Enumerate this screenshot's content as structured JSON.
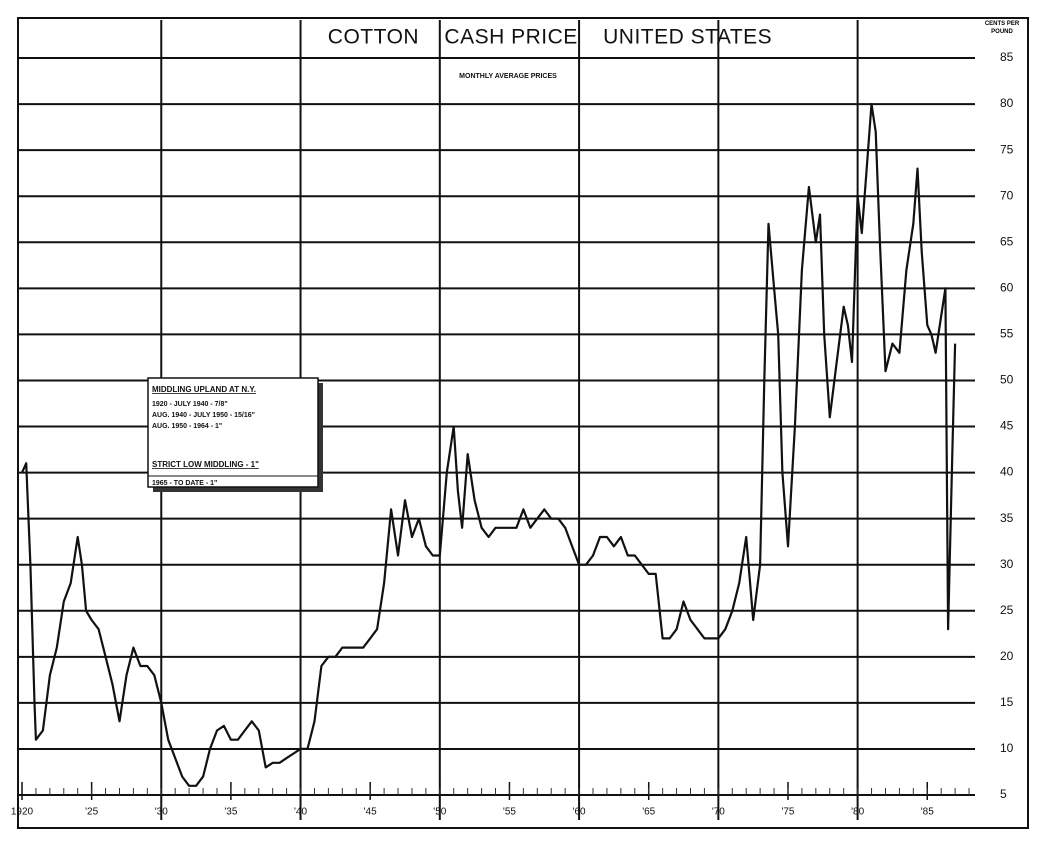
{
  "chart_data": {
    "type": "line",
    "title": "COTTON    CASH PRICE    UNITED STATES",
    "subtitle": "MONTHLY AVERAGE PRICES",
    "y_label": "CENTS PER POUND",
    "annotations": [
      "MIDDLING UPLAND AT N.Y.",
      "1920 - JULY 1940 - 7/8\"",
      "AUG. 1940 - JULY 1950 - 15/16\"",
      "AUG. 1950 - 1964 - 1\"",
      "STRICT LOW MIDDLING - 1\"",
      "1965 - TO DATE - 1\""
    ],
    "x": [
      1920,
      1920.3,
      1920.6,
      1920.9,
      1921,
      1921.5,
      1922,
      1922.5,
      1923,
      1923.5,
      1924,
      1924.3,
      1924.6,
      1925,
      1925.5,
      1926,
      1926.5,
      1927,
      1927.5,
      1928,
      1928.5,
      1929,
      1929.5,
      1930,
      1930.5,
      1931,
      1931.5,
      1932,
      1932.5,
      1933,
      1933.5,
      1934,
      1934.5,
      1935,
      1935.5,
      1936,
      1936.5,
      1937,
      1937.5,
      1938,
      1938.5,
      1939,
      1939.5,
      1940,
      1940.5,
      1941,
      1941.5,
      1942,
      1942.5,
      1943,
      1943.5,
      1944,
      1944.5,
      1945,
      1945.5,
      1946,
      1946.5,
      1947,
      1947.5,
      1948,
      1948.5,
      1949,
      1949.5,
      1950,
      1950.5,
      1951,
      1951.3,
      1951.6,
      1952,
      1952.5,
      1953,
      1953.5,
      1954,
      1954.5,
      1955,
      1955.5,
      1956,
      1956.5,
      1957,
      1957.5,
      1958,
      1958.5,
      1959,
      1959.5,
      1960,
      1960.5,
      1961,
      1961.5,
      1962,
      1962.5,
      1963,
      1963.5,
      1964,
      1964.5,
      1965,
      1965.5,
      1966,
      1966.5,
      1967,
      1967.5,
      1968,
      1968.5,
      1969,
      1969.5,
      1970,
      1970.5,
      1971,
      1971.5,
      1972,
      1972.5,
      1973,
      1973.3,
      1973.6,
      1974,
      1974.3,
      1974.6,
      1975,
      1975.5,
      1976,
      1976.5,
      1977,
      1977.3,
      1977.6,
      1978,
      1978.5,
      1979,
      1979.3,
      1979.6,
      1980,
      1980.3,
      1980.6,
      1981,
      1981.3,
      1981.6,
      1982,
      1982.5,
      1983,
      1983.5,
      1984,
      1984.3,
      1984.6,
      1985,
      1985.3,
      1985.6,
      1986,
      1986.3,
      1986.5,
      1986.8,
      1987
    ],
    "series": [
      {
        "color": "#111111",
        "values": [
          40,
          41,
          30,
          15,
          11,
          12,
          18,
          21,
          26,
          28,
          33,
          30,
          25,
          24,
          23,
          20,
          17,
          13,
          18,
          21,
          19,
          19,
          18,
          15,
          11,
          9,
          7,
          6,
          6,
          7,
          10,
          12,
          12.5,
          11,
          11,
          12,
          13,
          12,
          8,
          8.5,
          8.5,
          9,
          9.5,
          10,
          10,
          13,
          19,
          20,
          20,
          21,
          21,
          21,
          21,
          22,
          23,
          28,
          36,
          31,
          37,
          33,
          35,
          32,
          31,
          31,
          40,
          45,
          38,
          34,
          42,
          37,
          34,
          33,
          34,
          34,
          34,
          34,
          36,
          34,
          35,
          36,
          35,
          35,
          34,
          32,
          30,
          30,
          31,
          33,
          33,
          32,
          33,
          31,
          31,
          30,
          29,
          29,
          22,
          22,
          23,
          26,
          24,
          23,
          22,
          22,
          22,
          23,
          25,
          28,
          33,
          24,
          30,
          50,
          67,
          60,
          55,
          40,
          32,
          45,
          62,
          71,
          65,
          68,
          55,
          46,
          52,
          58,
          56,
          52,
          70,
          66,
          72,
          80,
          77,
          65,
          51,
          54,
          53,
          62,
          67,
          73,
          64,
          56,
          55,
          53,
          57,
          60,
          23,
          42,
          54
        ]
      }
    ],
    "xlim": [
      1920,
      1988.5
    ],
    "ylim": [
      5,
      85
    ],
    "xticks": [
      {
        "value": 1920,
        "label": "1920"
      },
      {
        "value": 1925,
        "label": "'25"
      },
      {
        "value": 1930,
        "label": "'30"
      },
      {
        "value": 1935,
        "label": "'35"
      },
      {
        "value": 1940,
        "label": "'40"
      },
      {
        "value": 1945,
        "label": "'45"
      },
      {
        "value": 1950,
        "label": "'50"
      },
      {
        "value": 1955,
        "label": "'55"
      },
      {
        "value": 1960,
        "label": "'60"
      },
      {
        "value": 1965,
        "label": "'65"
      },
      {
        "value": 1970,
        "label": "'70"
      },
      {
        "value": 1975,
        "label": "'75"
      },
      {
        "value": 1980,
        "label": "'80"
      },
      {
        "value": 1985,
        "label": "'85"
      }
    ],
    "yticks": [
      5,
      10,
      15,
      20,
      25,
      30,
      35,
      40,
      45,
      50,
      55,
      60,
      65,
      70,
      75,
      80,
      85
    ],
    "grid": true
  }
}
